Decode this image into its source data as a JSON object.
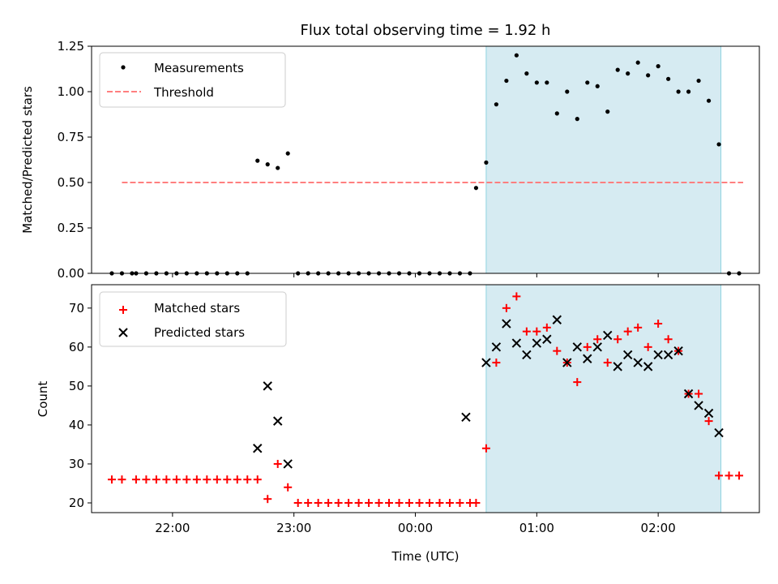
{
  "title": "Flux total observing time = 1.92 h",
  "chart_data": [
    {
      "type": "scatter",
      "ylabel": "Matched/Predicted stars",
      "xlabel": "",
      "ylim": [
        0,
        1.25
      ],
      "yticks": [
        "0.00",
        "0.25",
        "0.50",
        "0.75",
        "1.00",
        "1.25"
      ],
      "legend": {
        "position": "top-left",
        "entries": [
          "Measurements",
          "Threshold"
        ]
      },
      "shaded_span": [
        "00:35",
        "02:31"
      ],
      "series": [
        {
          "name": "Measurements",
          "x": [
            "21:30",
            "21:35",
            "21:40",
            "21:42",
            "21:47",
            "21:52",
            "21:57",
            "22:02",
            "22:07",
            "22:12",
            "22:17",
            "22:22",
            "22:27",
            "22:32",
            "22:37",
            "22:42",
            "22:47",
            "22:52",
            "22:57",
            "23:02",
            "23:07",
            "23:12",
            "23:17",
            "23:22",
            "23:27",
            "23:32",
            "23:37",
            "23:42",
            "23:47",
            "23:52",
            "23:57",
            "00:02",
            "00:07",
            "00:12",
            "00:17",
            "00:22",
            "00:27",
            "00:30",
            "00:35",
            "00:40",
            "00:45",
            "00:50",
            "00:55",
            "01:00",
            "01:05",
            "01:10",
            "01:15",
            "01:20",
            "01:25",
            "01:30",
            "01:35",
            "01:40",
            "01:45",
            "01:50",
            "01:55",
            "02:00",
            "02:05",
            "02:10",
            "02:15",
            "02:20",
            "02:25",
            "02:30",
            "02:35",
            "02:40"
          ],
          "y": [
            0,
            0,
            0,
            0,
            0,
            0,
            0,
            0,
            0,
            0,
            0,
            0,
            0,
            0,
            0,
            0.62,
            0.6,
            0.58,
            0.66,
            0,
            0,
            0,
            0,
            0,
            0,
            0,
            0,
            0,
            0,
            0,
            0,
            0,
            0,
            0,
            0,
            0,
            0,
            0.47,
            0.61,
            0.93,
            1.06,
            1.2,
            1.1,
            1.05,
            1.05,
            0.88,
            1.0,
            0.85,
            1.05,
            1.03,
            0.89,
            1.12,
            1.1,
            1.16,
            1.09,
            1.14,
            1.07,
            1.0,
            1.0,
            1.06,
            0.95,
            0.71,
            0,
            0
          ]
        },
        {
          "name": "Threshold",
          "x": [
            "21:35",
            "02:42"
          ],
          "y": [
            0.5,
            0.5
          ]
        }
      ]
    },
    {
      "type": "scatter",
      "ylabel": "Count",
      "xlabel": "Time (UTC)",
      "ylim": [
        17.5,
        76
      ],
      "yticks": [
        "20",
        "30",
        "40",
        "50",
        "60",
        "70"
      ],
      "xticks": [
        "22:00",
        "23:00",
        "00:00",
        "01:00",
        "02:00"
      ],
      "legend": {
        "position": "top-left",
        "entries": [
          "Matched stars",
          "Predicted stars"
        ]
      },
      "shaded_span": [
        "00:35",
        "02:31"
      ],
      "series": [
        {
          "name": "Matched stars",
          "x": [
            "21:30",
            "21:35",
            "21:42",
            "21:47",
            "21:52",
            "21:57",
            "22:02",
            "22:07",
            "22:12",
            "22:17",
            "22:22",
            "22:27",
            "22:32",
            "22:37",
            "22:42",
            "22:47",
            "22:52",
            "22:57",
            "23:02",
            "23:07",
            "23:12",
            "23:17",
            "23:22",
            "23:27",
            "23:32",
            "23:37",
            "23:42",
            "23:47",
            "23:52",
            "23:57",
            "00:02",
            "00:07",
            "00:12",
            "00:17",
            "00:22",
            "00:27",
            "00:30",
            "00:35",
            "00:40",
            "00:45",
            "00:50",
            "00:55",
            "01:00",
            "01:05",
            "01:10",
            "01:15",
            "01:20",
            "01:25",
            "01:30",
            "01:35",
            "01:40",
            "01:45",
            "01:50",
            "01:55",
            "02:00",
            "02:05",
            "02:10",
            "02:15",
            "02:20",
            "02:25",
            "02:30",
            "02:35",
            "02:40"
          ],
          "y": [
            26,
            26,
            26,
            26,
            26,
            26,
            26,
            26,
            26,
            26,
            26,
            26,
            26,
            26,
            26,
            21,
            30,
            24,
            20,
            20,
            20,
            20,
            20,
            20,
            20,
            20,
            20,
            20,
            20,
            20,
            20,
            20,
            20,
            20,
            20,
            20,
            20,
            34,
            56,
            70,
            73,
            64,
            64,
            65,
            59,
            56,
            51,
            60,
            62,
            56,
            62,
            64,
            65,
            60,
            66,
            62,
            59,
            48,
            48,
            41,
            27,
            27,
            27
          ]
        },
        {
          "name": "Predicted stars",
          "x": [
            "22:42",
            "22:47",
            "22:52",
            "22:57",
            "00:25",
            "00:35",
            "00:40",
            "00:45",
            "00:50",
            "00:55",
            "01:00",
            "01:05",
            "01:10",
            "01:15",
            "01:20",
            "01:25",
            "01:30",
            "01:35",
            "01:40",
            "01:45",
            "01:50",
            "01:55",
            "02:00",
            "02:05",
            "02:10",
            "02:15",
            "02:20",
            "02:25",
            "02:30"
          ],
          "y": [
            34,
            50,
            41,
            30,
            42,
            56,
            60,
            66,
            61,
            58,
            61,
            62,
            67,
            56,
            60,
            57,
            60,
            63,
            55,
            58,
            56,
            55,
            58,
            58,
            59,
            48,
            45,
            43,
            38
          ]
        }
      ]
    }
  ]
}
